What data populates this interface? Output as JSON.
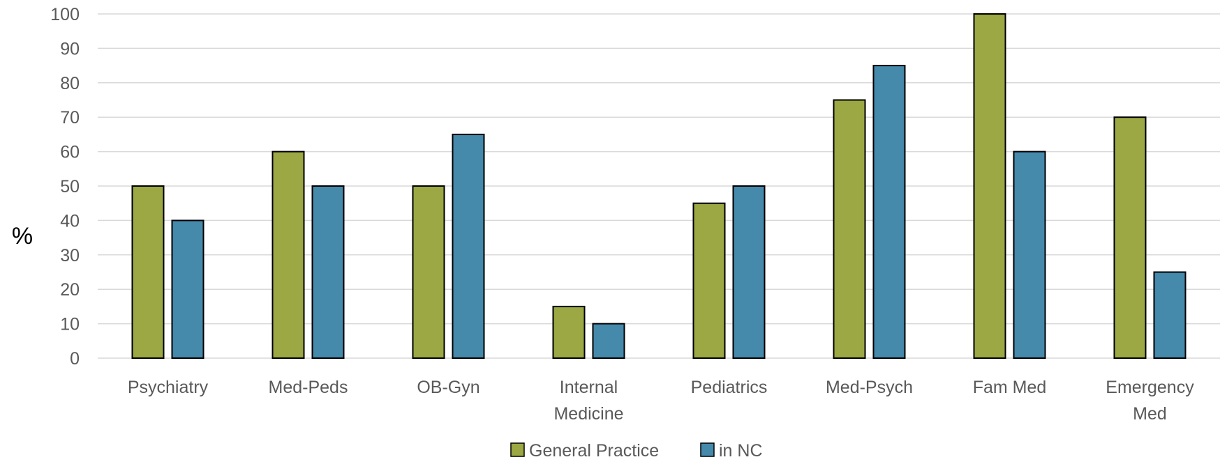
{
  "chart_data": {
    "type": "bar",
    "title": "",
    "xlabel": "",
    "ylabel": "%",
    "ylim": [
      0,
      100
    ],
    "yticks": [
      0,
      10,
      20,
      30,
      40,
      50,
      60,
      70,
      80,
      90,
      100
    ],
    "grid": true,
    "legend_position": "bottom",
    "categories": [
      [
        "Psychiatry"
      ],
      [
        "Med-Peds"
      ],
      [
        "OB-Gyn"
      ],
      [
        "Internal",
        "Medicine"
      ],
      [
        "Pediatrics"
      ],
      [
        "Med-Psych"
      ],
      [
        "Fam Med"
      ],
      [
        "Emergency",
        "Med"
      ]
    ],
    "series": [
      {
        "name": "General Practice",
        "color": "#9BA843",
        "values": [
          50,
          60,
          50,
          15,
          45,
          75,
          100,
          70
        ]
      },
      {
        "name": "in NC",
        "color": "#4589AB",
        "values": [
          40,
          50,
          65,
          10,
          50,
          85,
          60,
          25
        ]
      }
    ]
  }
}
